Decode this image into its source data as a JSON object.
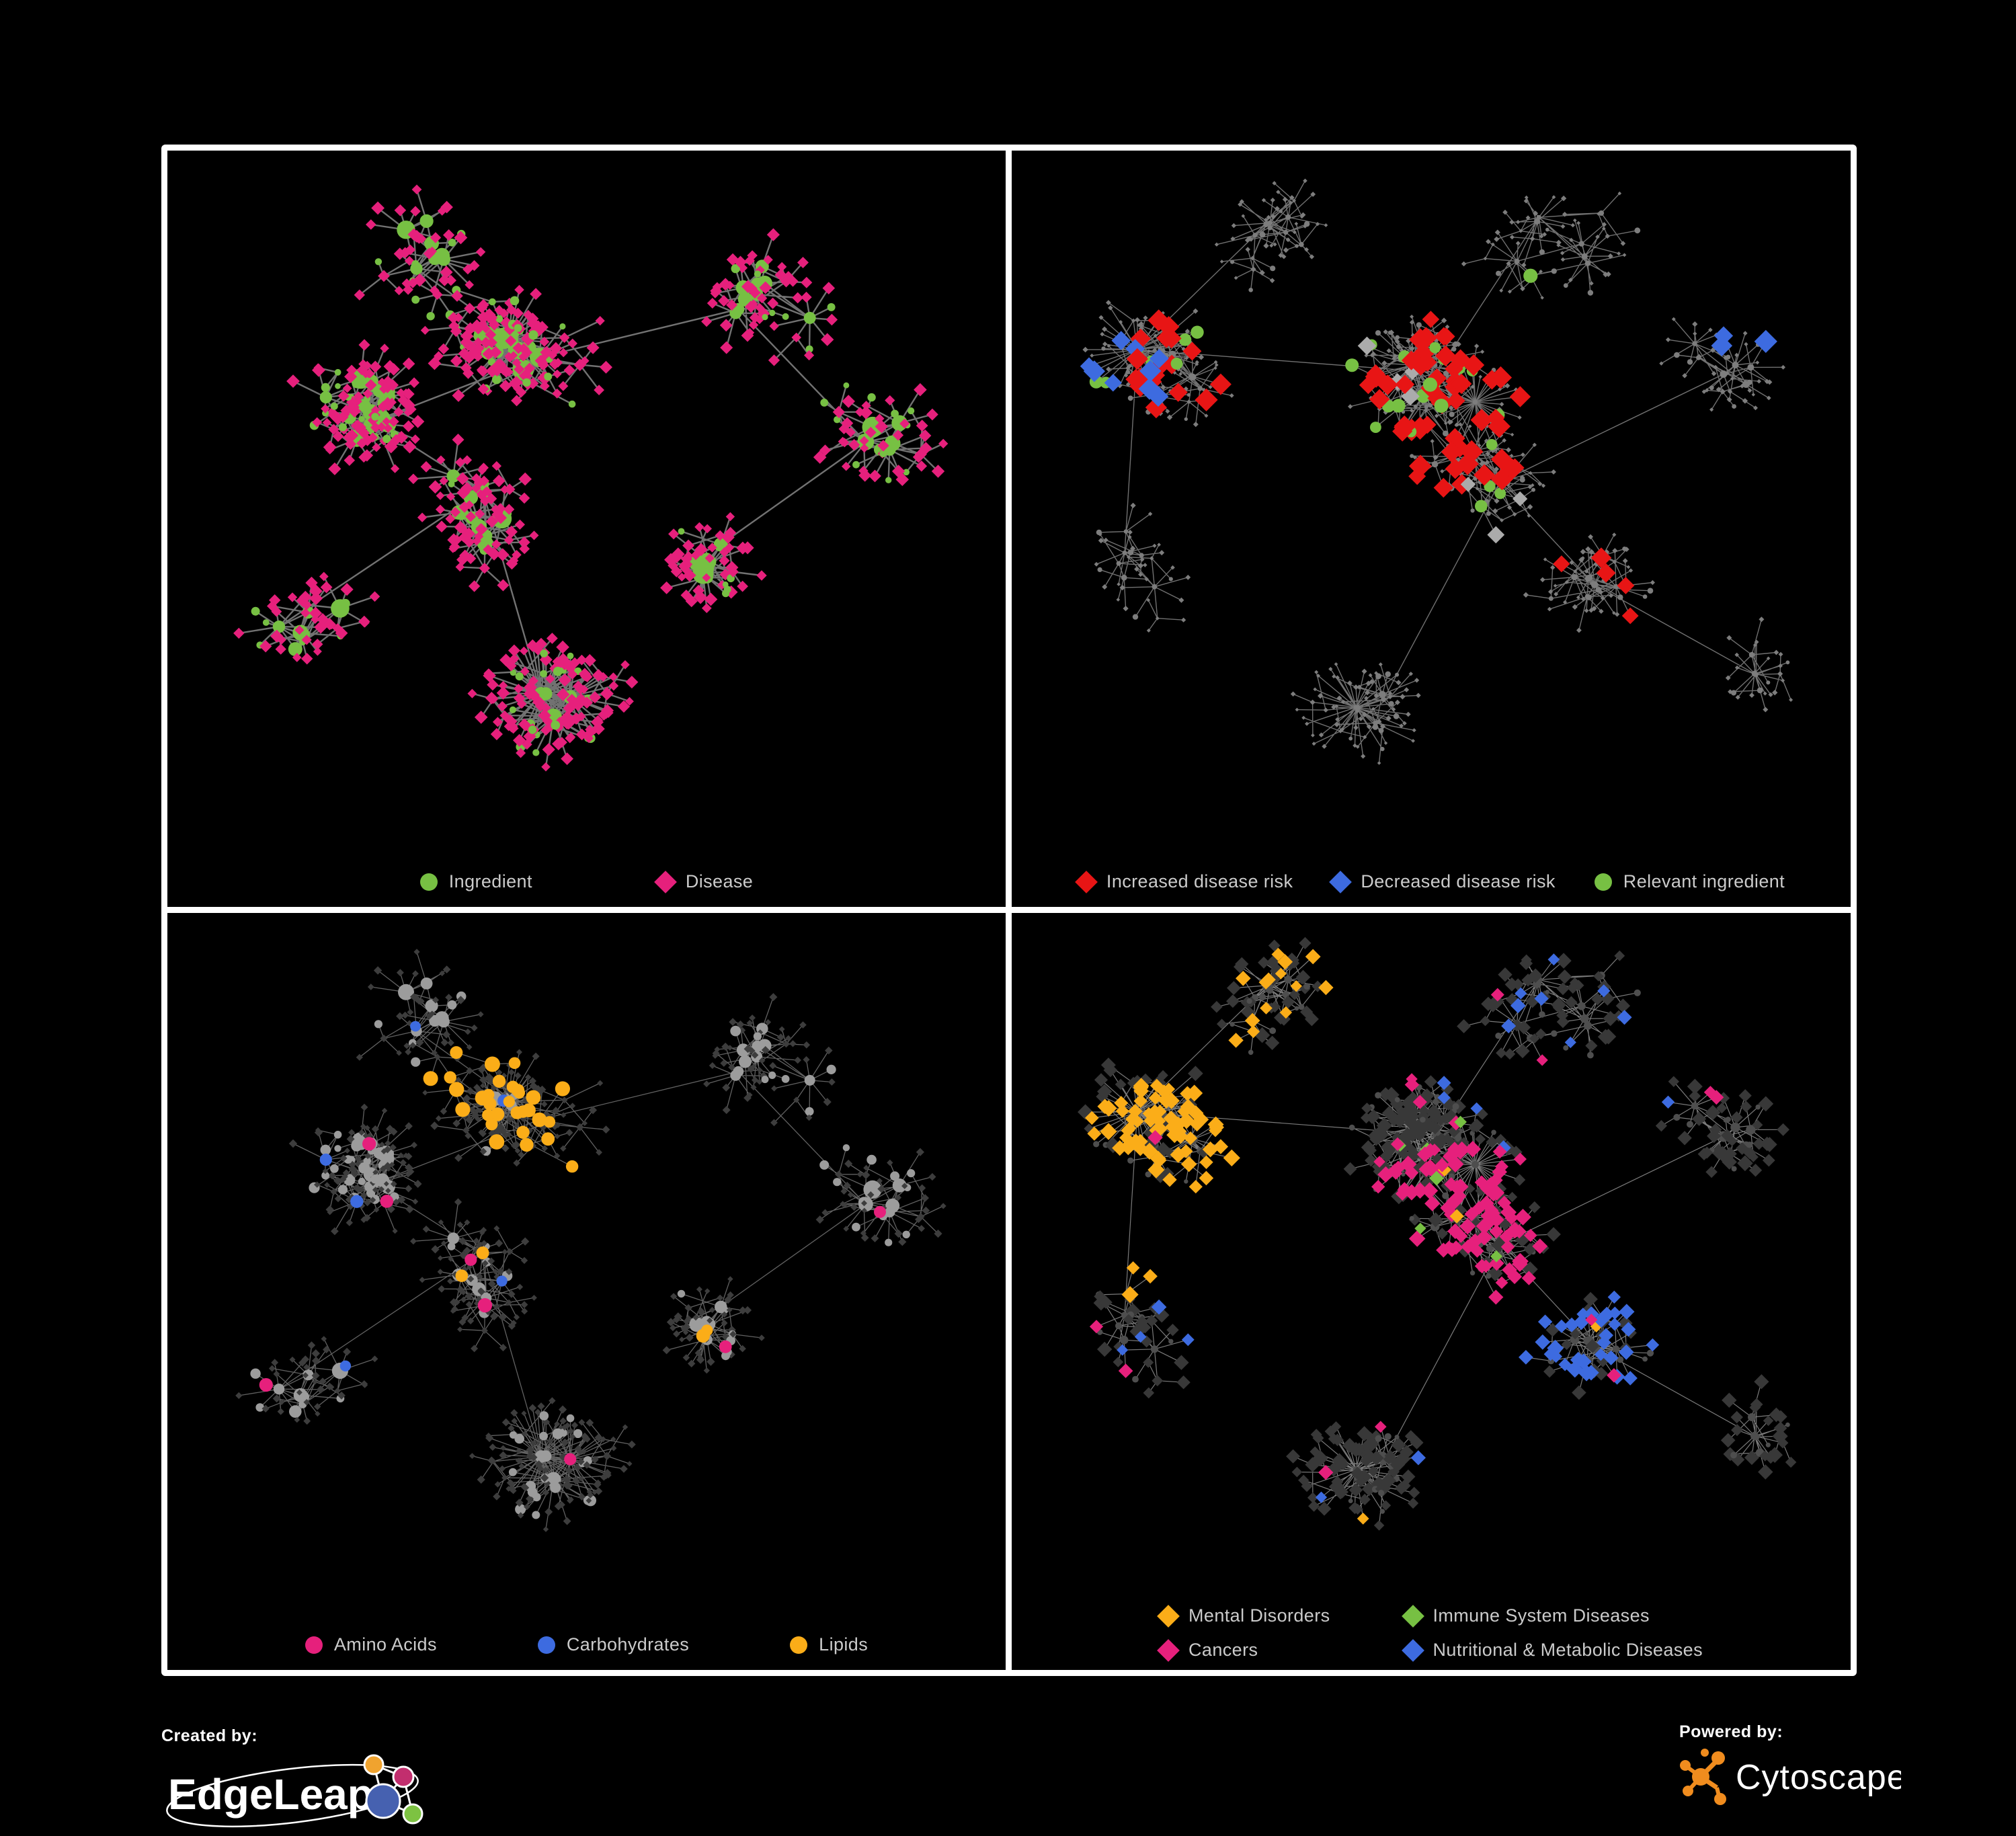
{
  "page": {
    "background": "#000000",
    "frame_border_color": "#FFFFFF"
  },
  "colors": {
    "green": "#77C043",
    "pink": "#E6207C",
    "red": "#E81515",
    "blue": "#3D6BE0",
    "orange": "#FBAD18",
    "gray_highlight": "#ABABAB",
    "legend_text": "#CBCBCB",
    "cytoscape_orange": "#F08C1E",
    "edgeleap_orange": "#F0A32F",
    "edgeleap_magenta": "#C22E6E",
    "edgeleap_blue": "#4661B0",
    "edgeleap_green": "#7DC242"
  },
  "layouts": {
    "A": {
      "seed": 11,
      "leaf_dist": 0.042,
      "clusters": [
        {
          "c": [
            0.23,
            0.36
          ],
          "s": 0.085,
          "hubs": 16
        },
        {
          "c": [
            0.41,
            0.28
          ],
          "s": 0.065,
          "hubs": 13
        },
        {
          "c": [
            0.36,
            0.52
          ],
          "s": 0.075,
          "hubs": 10
        },
        {
          "c": [
            0.47,
            0.79
          ],
          "s": 0.045,
          "hubs": 4,
          "burst": true
        },
        {
          "c": [
            0.71,
            0.2
          ],
          "s": 0.085,
          "hubs": 9
        },
        {
          "c": [
            0.85,
            0.42
          ],
          "s": 0.065,
          "hubs": 7
        },
        {
          "c": [
            0.16,
            0.7
          ],
          "s": 0.065,
          "hubs": 6
        },
        {
          "c": [
            0.64,
            0.6
          ],
          "s": 0.07,
          "hubs": 7
        },
        {
          "c": [
            0.3,
            0.13
          ],
          "s": 0.07,
          "hubs": 7
        }
      ]
    },
    "B": {
      "seed": 23,
      "leaf_dist": 0.04,
      "clusters": [
        {
          "c": [
            0.17,
            0.31
          ],
          "s": 0.065,
          "hubs": 11
        },
        {
          "c": [
            0.49,
            0.31
          ],
          "s": 0.075,
          "hubs": 15
        },
        {
          "c": [
            0.56,
            0.47
          ],
          "s": 0.065,
          "hubs": 10
        },
        {
          "c": [
            0.3,
            0.11
          ],
          "s": 0.075,
          "hubs": 7
        },
        {
          "c": [
            0.66,
            0.12
          ],
          "s": 0.08,
          "hubs": 8
        },
        {
          "c": [
            0.86,
            0.3
          ],
          "s": 0.055,
          "hubs": 6
        },
        {
          "c": [
            0.43,
            0.8
          ],
          "s": 0.055,
          "hubs": 5,
          "burst": true
        },
        {
          "c": [
            0.69,
            0.63
          ],
          "s": 0.065,
          "hubs": 8
        },
        {
          "c": [
            0.13,
            0.6
          ],
          "s": 0.055,
          "hubs": 5
        },
        {
          "c": [
            0.88,
            0.76
          ],
          "s": 0.05,
          "hubs": 4
        }
      ]
    }
  },
  "panels": [
    {
      "id": "ingredient-disease-network",
      "legend": [
        {
          "shape": "circle",
          "color": "#77C043",
          "label": "Ingredient"
        },
        {
          "shape": "diamond",
          "color": "#E6207C",
          "label": "Disease"
        }
      ],
      "network": {
        "layout": "A",
        "style_seed": 101,
        "style": {
          "edge": {
            "color": "#7E7E7E",
            "w": 2.4,
            "op": 0.9
          },
          "circle": {
            "fill": "#77C043",
            "r": 5.5,
            "hubR": [
              9,
              16
            ]
          },
          "diamond": {
            "fill": "#E6207C",
            "s": 8
          },
          "overrides": []
        }
      }
    },
    {
      "id": "disease-risk-network",
      "legend": [
        {
          "shape": "diamond",
          "color": "#E81515",
          "label": "Increased disease risk"
        },
        {
          "shape": "diamond",
          "color": "#3D6BE0",
          "label": "Decreased disease risk"
        },
        {
          "shape": "circle",
          "color": "#77C043",
          "label": "Relevant ingredient"
        }
      ],
      "network": {
        "layout": "B",
        "style_seed": 202,
        "style": {
          "edge": {
            "color": "#8C8C8C",
            "w": 1.4,
            "op": 0.8
          },
          "circle": {
            "fill": "#7D7D7D",
            "r": 3.4,
            "hubR": [
              3.5,
              5.5
            ]
          },
          "diamond": {
            "fill": "#7D7D7D",
            "s": 3.4
          },
          "overrides": [
            {
              "shape": "diamond",
              "color": "#E81515",
              "c": [
                0.5,
                0.36
              ],
              "r": 0.17,
              "p": 0.2,
              "size": 15
            },
            {
              "shape": "diamond",
              "color": "#E81515",
              "c": [
                0.19,
                0.29
              ],
              "r": 0.09,
              "p": 0.18,
              "size": 15
            },
            {
              "shape": "diamond",
              "color": "#E81515",
              "c": [
                0.7,
                0.66
              ],
              "r": 0.1,
              "p": 0.12,
              "size": 14
            },
            {
              "shape": "diamond",
              "color": "#3D6BE0",
              "c": [
                0.14,
                0.34
              ],
              "r": 0.08,
              "p": 0.25,
              "size": 15
            },
            {
              "shape": "diamond",
              "color": "#3D6BE0",
              "c": [
                0.87,
                0.27
              ],
              "r": 0.045,
              "p": 0.4,
              "size": 15
            },
            {
              "shape": "diamond",
              "color": "#ABABAB",
              "c": [
                0.47,
                0.4
              ],
              "r": 0.22,
              "p": 0.05,
              "size": 13
            },
            {
              "shape": "circle",
              "color": "#77C043",
              "c": [
                0.49,
                0.35
              ],
              "r": 0.24,
              "p": 0.4,
              "size": 9.5
            },
            {
              "shape": "circle",
              "color": "#77C043",
              "c": [
                0.17,
                0.3
              ],
              "r": 0.12,
              "p": 0.4,
              "size": 9.5
            },
            {
              "shape": "circle",
              "color": "#77C043",
              "c": [
                0.88,
                0.62
              ],
              "r": 0.12,
              "p": 0.25,
              "size": 9.5
            }
          ]
        }
      }
    },
    {
      "id": "macronutrient-network",
      "legend": [
        {
          "shape": "circle",
          "color": "#E6207C",
          "label": "Amino Acids"
        },
        {
          "shape": "circle",
          "color": "#3D6BE0",
          "label": "Carbohydrates"
        },
        {
          "shape": "circle",
          "color": "#FBAD18",
          "label": "Lipids"
        }
      ],
      "network": {
        "layout": "A",
        "style_seed": 303,
        "style": {
          "edge": {
            "color": "#8A8A8A",
            "w": 1.3,
            "op": 0.7
          },
          "circle": {
            "fill": "#9C9C9C",
            "r": 6.5,
            "hubR": [
              8,
              14
            ]
          },
          "diamond": {
            "fill": "#3D3D3D",
            "s": 5
          },
          "overrides": [
            {
              "shape": "circle",
              "color": "#FBAD18",
              "c": [
                0.41,
                0.27
              ],
              "r": 0.13,
              "p": 0.8,
              "size": 10
            },
            {
              "shape": "circle",
              "color": "#FBAD18",
              "c": [
                0.42,
                0.47
              ],
              "r": 0.1,
              "p": 0.4,
              "size": 10
            },
            {
              "shape": "circle",
              "color": "#FBAD18",
              "c": [
                0.6,
                0.58
              ],
              "r": 0.28,
              "p": 0.12,
              "size": 10
            },
            {
              "shape": "circle",
              "color": "#3D6BE0",
              "c": [
                0.42,
                0.28
              ],
              "r": 0.15,
              "p": 0.2,
              "size": 10
            },
            {
              "shape": "circle",
              "color": "#3D6BE0",
              "c": [
                0.55,
                0.5
              ],
              "r": 0.5,
              "p": 0.02,
              "size": 9
            },
            {
              "shape": "circle",
              "color": "#E6207C",
              "c": [
                0.5,
                0.48
              ],
              "r": 0.55,
              "p": 0.07,
              "size": 10
            }
          ]
        }
      }
    },
    {
      "id": "disease-category-network",
      "legend": [
        {
          "shape": "diamond",
          "color": "#FBAD18",
          "label": "Mental Disorders"
        },
        {
          "shape": "diamond",
          "color": "#77C043",
          "label": "Immune System Diseases"
        },
        {
          "shape": "diamond",
          "color": "#E6207C",
          "label": "Cancers"
        },
        {
          "shape": "diamond",
          "color": "#3D6BE0",
          "label": "Nutritional & Metabolic Diseases"
        }
      ],
      "network": {
        "layout": "B",
        "style_seed": 404,
        "style": {
          "edge": {
            "color": "#A3A3A3",
            "w": 1.2,
            "op": 0.75
          },
          "circle": {
            "fill": "#4E4E4E",
            "r": 4,
            "hubR": [
              5,
              8
            ]
          },
          "diamond": {
            "fill": "#383838",
            "s": 9.5
          },
          "overrides": [
            {
              "shape": "diamond",
              "color": "#FBAD18",
              "c": [
                0.2,
                0.4
              ],
              "r": 0.17,
              "p": 0.8,
              "size": 11
            },
            {
              "shape": "diamond",
              "color": "#FBAD18",
              "c": [
                0.3,
                0.11
              ],
              "r": 0.1,
              "p": 0.3,
              "size": 10
            },
            {
              "shape": "diamond",
              "color": "#FBAD18",
              "c": [
                0.5,
                0.5
              ],
              "r": 0.5,
              "p": 0.015,
              "size": 10
            },
            {
              "shape": "diamond",
              "color": "#E6207C",
              "c": [
                0.54,
                0.46
              ],
              "r": 0.13,
              "p": 0.55,
              "size": 11
            },
            {
              "shape": "diamond",
              "color": "#E6207C",
              "c": [
                0.86,
                0.2
              ],
              "r": 0.07,
              "p": 0.5,
              "size": 10
            },
            {
              "shape": "diamond",
              "color": "#E6207C",
              "c": [
                0.5,
                0.6
              ],
              "r": 0.5,
              "p": 0.03,
              "size": 10
            },
            {
              "shape": "diamond",
              "color": "#3D6BE0",
              "c": [
                0.7,
                0.61
              ],
              "r": 0.09,
              "p": 0.65,
              "size": 11
            },
            {
              "shape": "diamond",
              "color": "#3D6BE0",
              "c": [
                0.7,
                0.15
              ],
              "r": 0.22,
              "p": 0.18,
              "size": 10
            },
            {
              "shape": "diamond",
              "color": "#3D6BE0",
              "c": [
                0.35,
                0.78
              ],
              "r": 0.28,
              "p": 0.08,
              "size": 10
            },
            {
              "shape": "diamond",
              "color": "#77C043",
              "c": [
                0.55,
                0.38
              ],
              "r": 0.25,
              "p": 0.03,
              "size": 10
            }
          ]
        }
      }
    }
  ],
  "footer": {
    "created_by_label": "Created by:",
    "created_by_brand": "EdgeLeap",
    "powered_by_label": "Powered by:",
    "powered_by_brand": "Cytoscape"
  }
}
